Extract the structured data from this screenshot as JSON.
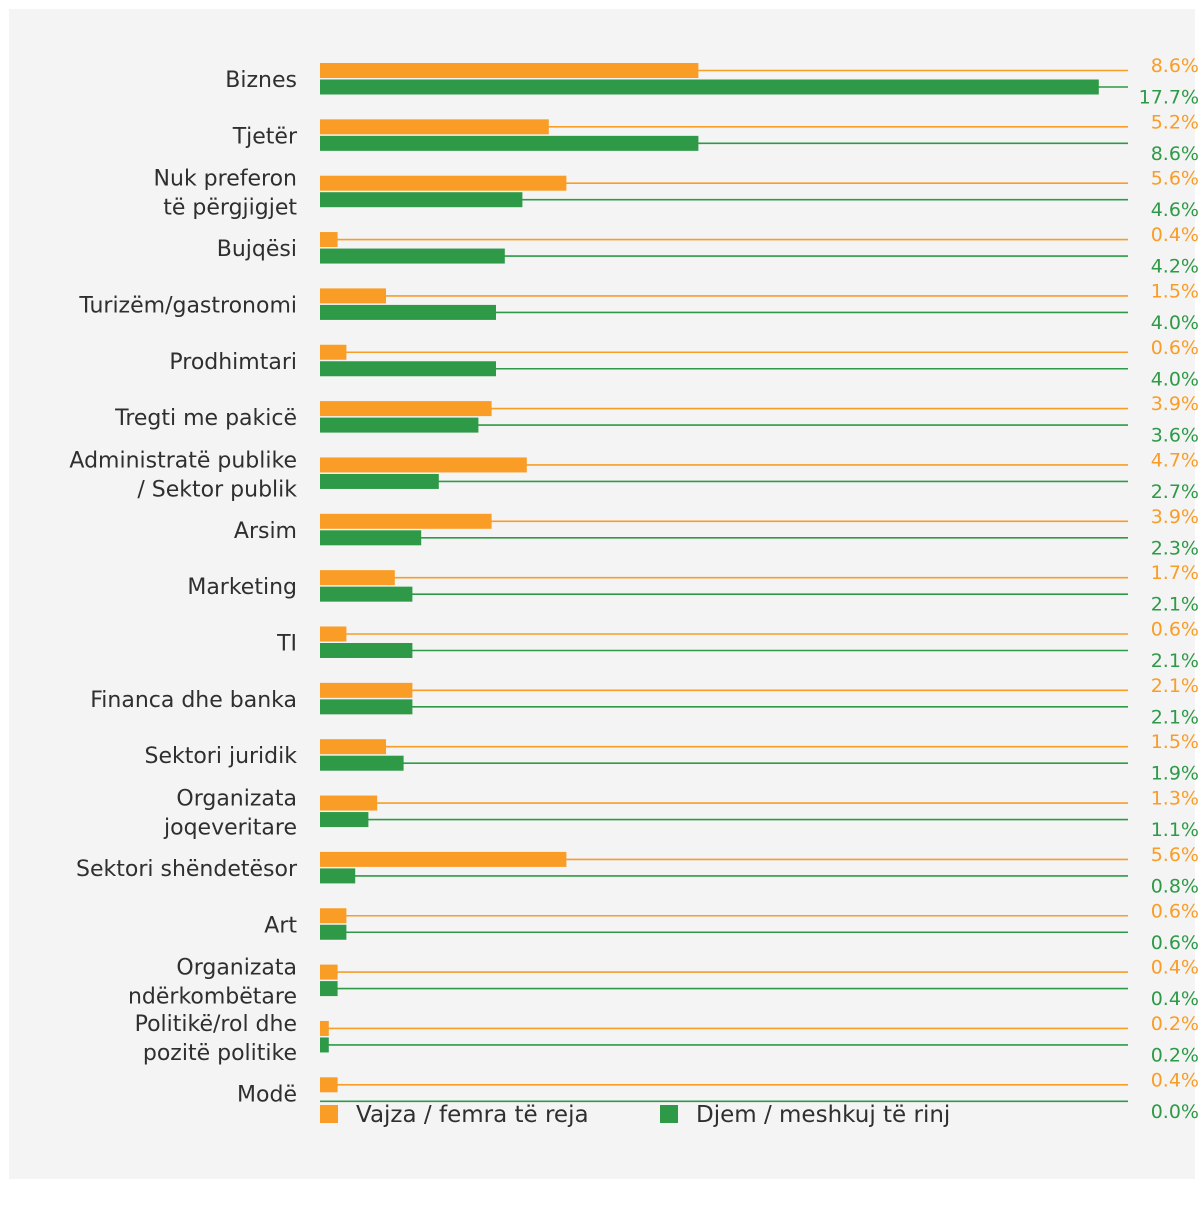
{
  "chart_data": {
    "type": "bar",
    "orientation": "horizontal",
    "categories": [
      "Biznes",
      "Tjetër",
      "Nuk preferon të përgjigjet",
      "Bujqësi",
      "Turizëm/gastronomi",
      "Prodhimtari",
      "Tregti me pakicë",
      "Administratë publike / Sektor publik",
      "Arsim",
      "Marketing",
      "TI",
      "Financa dhe banka",
      "Sektori juridik",
      "Organizata joqeveritare",
      "Sektori shëndetësor",
      "Art",
      "Organizata ndërkombëtare",
      "Politikë/rol dhe pozitë politike",
      "Modë"
    ],
    "category_lines": [
      [
        "Biznes"
      ],
      [
        "Tjetër"
      ],
      [
        "Nuk preferon",
        "të përgjigjet"
      ],
      [
        "Bujqësi"
      ],
      [
        "Turizëm/gastronomi"
      ],
      [
        "Prodhimtari"
      ],
      [
        "Tregti me pakicë"
      ],
      [
        "Administratë publike",
        "/ Sektor publik"
      ],
      [
        "Arsim"
      ],
      [
        "Marketing"
      ],
      [
        "TI"
      ],
      [
        "Financa dhe banka"
      ],
      [
        "Sektori juridik"
      ],
      [
        "Organizata",
        "joqeveritare"
      ],
      [
        "Sektori shëndetësor"
      ],
      [
        "Art"
      ],
      [
        "Organizata",
        "ndërkombëtare"
      ],
      [
        "Politikë/rol dhe",
        "pozitë politike"
      ],
      [
        "Modë"
      ]
    ],
    "series": [
      {
        "name": "Vajza / femra të reja",
        "color": "#f99d27",
        "values": [
          8.6,
          5.2,
          5.6,
          0.4,
          1.5,
          0.6,
          3.9,
          4.7,
          3.9,
          1.7,
          0.6,
          2.1,
          1.5,
          1.3,
          5.6,
          0.6,
          0.4,
          0.2,
          0.4
        ],
        "labels": [
          "8.6%",
          "5.2%",
          "5.6%",
          "0.4%",
          "1.5%",
          "0.6%",
          "3.9%",
          "4.7%",
          "3.9%",
          "1.7%",
          "0.6%",
          "2.1%",
          "1.5%",
          "1.3%",
          "5.6%",
          "0.6%",
          "0.4%",
          "0.2%",
          "0.4%"
        ]
      },
      {
        "name": "Djem / meshkuj të rinj",
        "color": "#2e9a47",
        "values": [
          17.7,
          8.6,
          4.6,
          4.2,
          4.0,
          4.0,
          3.6,
          2.7,
          2.3,
          2.1,
          2.1,
          2.1,
          1.9,
          1.1,
          0.8,
          0.6,
          0.4,
          0.2,
          0.0
        ],
        "labels": [
          "17.7%",
          "8.6%",
          "4.6%",
          "4.2%",
          "4.0%",
          "4.0%",
          "3.6%",
          "2.7%",
          "2.3%",
          "2.1%",
          "2.1%",
          "2.1%",
          "1.9%",
          "1.1%",
          "0.8%",
          "0.6%",
          "0.4%",
          "0.2%",
          "0.0%"
        ]
      }
    ],
    "xlim": [
      0,
      18
    ],
    "grid": false,
    "legend": "bottom"
  }
}
